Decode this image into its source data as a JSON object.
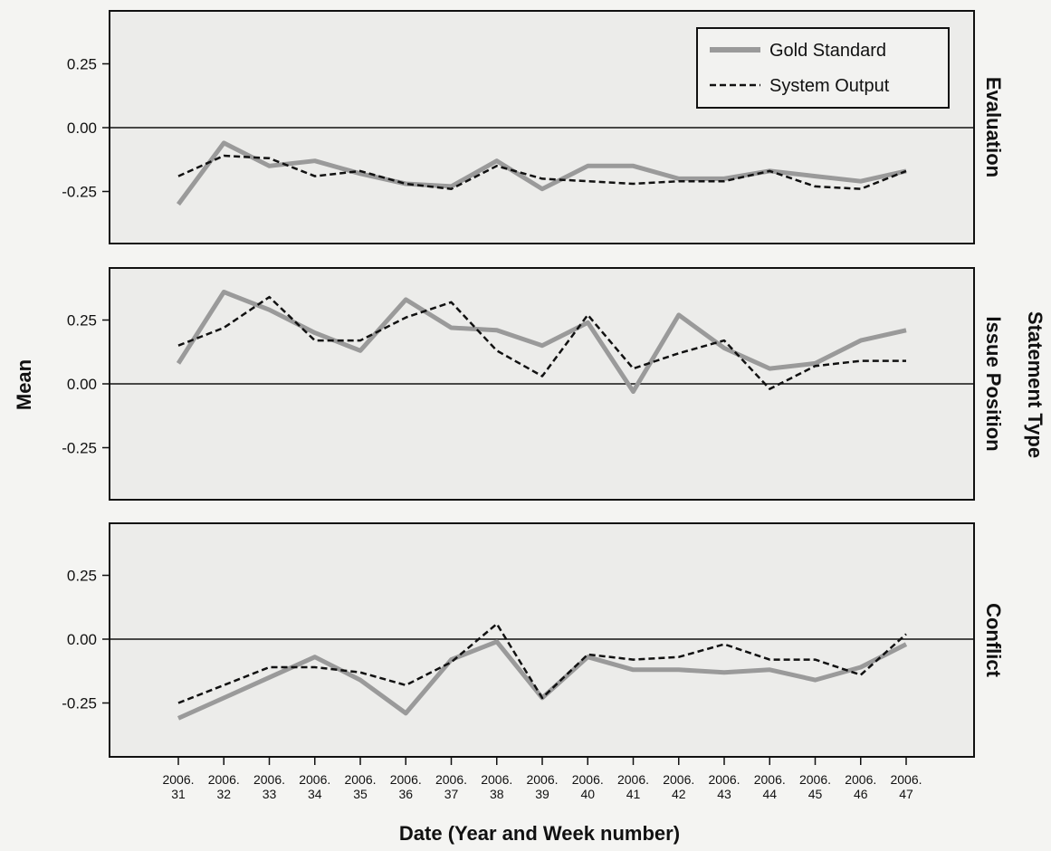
{
  "chart_data": {
    "type": "line",
    "xlabel": "Date (Year and Week number)",
    "ylabel": "Mean",
    "facet_label": "Statement Type",
    "ylim": [
      -0.38,
      0.38
    ],
    "yticks": [
      0.25,
      0.0,
      -0.25
    ],
    "ytick_labels": [
      "0.25",
      "0.00",
      "-0.25"
    ],
    "categories": [
      [
        "2006.",
        "31"
      ],
      [
        "2006.",
        "32"
      ],
      [
        "2006.",
        "33"
      ],
      [
        "2006.",
        "34"
      ],
      [
        "2006.",
        "35"
      ],
      [
        "2006.",
        "36"
      ],
      [
        "2006.",
        "37"
      ],
      [
        "2006.",
        "38"
      ],
      [
        "2006.",
        "39"
      ],
      [
        "2006.",
        "40"
      ],
      [
        "2006.",
        "41"
      ],
      [
        "2006.",
        "42"
      ],
      [
        "2006.",
        "43"
      ],
      [
        "2006.",
        "44"
      ],
      [
        "2006.",
        "45"
      ],
      [
        "2006.",
        "46"
      ],
      [
        "2006.",
        "47"
      ]
    ],
    "legend": {
      "placement": "top-right",
      "entries": [
        {
          "name": "Gold Standard",
          "style": "solid",
          "color": "#9a9a9a"
        },
        {
          "name": "System Output",
          "style": "dashed",
          "color": "#111111"
        }
      ]
    },
    "panels": [
      {
        "name": "Evaluation",
        "series": [
          {
            "name": "Gold Standard",
            "values": [
              -0.3,
              -0.06,
              -0.15,
              -0.13,
              -0.18,
              -0.22,
              -0.23,
              -0.13,
              -0.24,
              -0.15,
              -0.15,
              -0.2,
              -0.2,
              -0.17,
              -0.19,
              -0.21,
              -0.17
            ]
          },
          {
            "name": "System Output",
            "values": [
              -0.19,
              -0.11,
              -0.12,
              -0.19,
              -0.17,
              -0.22,
              -0.24,
              -0.15,
              -0.2,
              -0.21,
              -0.22,
              -0.21,
              -0.21,
              -0.17,
              -0.23,
              -0.24,
              -0.17
            ]
          }
        ]
      },
      {
        "name": "Issue Position",
        "series": [
          {
            "name": "Gold Standard",
            "values": [
              0.08,
              0.36,
              0.29,
              0.2,
              0.13,
              0.33,
              0.22,
              0.21,
              0.15,
              0.24,
              -0.03,
              0.27,
              0.14,
              0.06,
              0.08,
              0.17,
              0.21
            ]
          },
          {
            "name": "System Output",
            "values": [
              0.15,
              0.22,
              0.34,
              0.17,
              0.17,
              0.26,
              0.32,
              0.13,
              0.03,
              0.27,
              0.06,
              0.12,
              0.17,
              -0.02,
              0.07,
              0.09,
              0.09
            ]
          }
        ]
      },
      {
        "name": "Conflict",
        "series": [
          {
            "name": "Gold Standard",
            "values": [
              -0.31,
              -0.23,
              -0.15,
              -0.07,
              -0.16,
              -0.29,
              -0.08,
              -0.01,
              -0.23,
              -0.07,
              -0.12,
              -0.12,
              -0.13,
              -0.12,
              -0.16,
              -0.11,
              -0.02
            ]
          },
          {
            "name": "System Output",
            "values": [
              -0.25,
              -0.18,
              -0.11,
              -0.11,
              -0.13,
              -0.18,
              -0.09,
              0.06,
              -0.23,
              -0.06,
              -0.08,
              -0.07,
              -0.02,
              -0.08,
              -0.08,
              -0.14,
              0.02
            ]
          }
        ]
      }
    ]
  }
}
